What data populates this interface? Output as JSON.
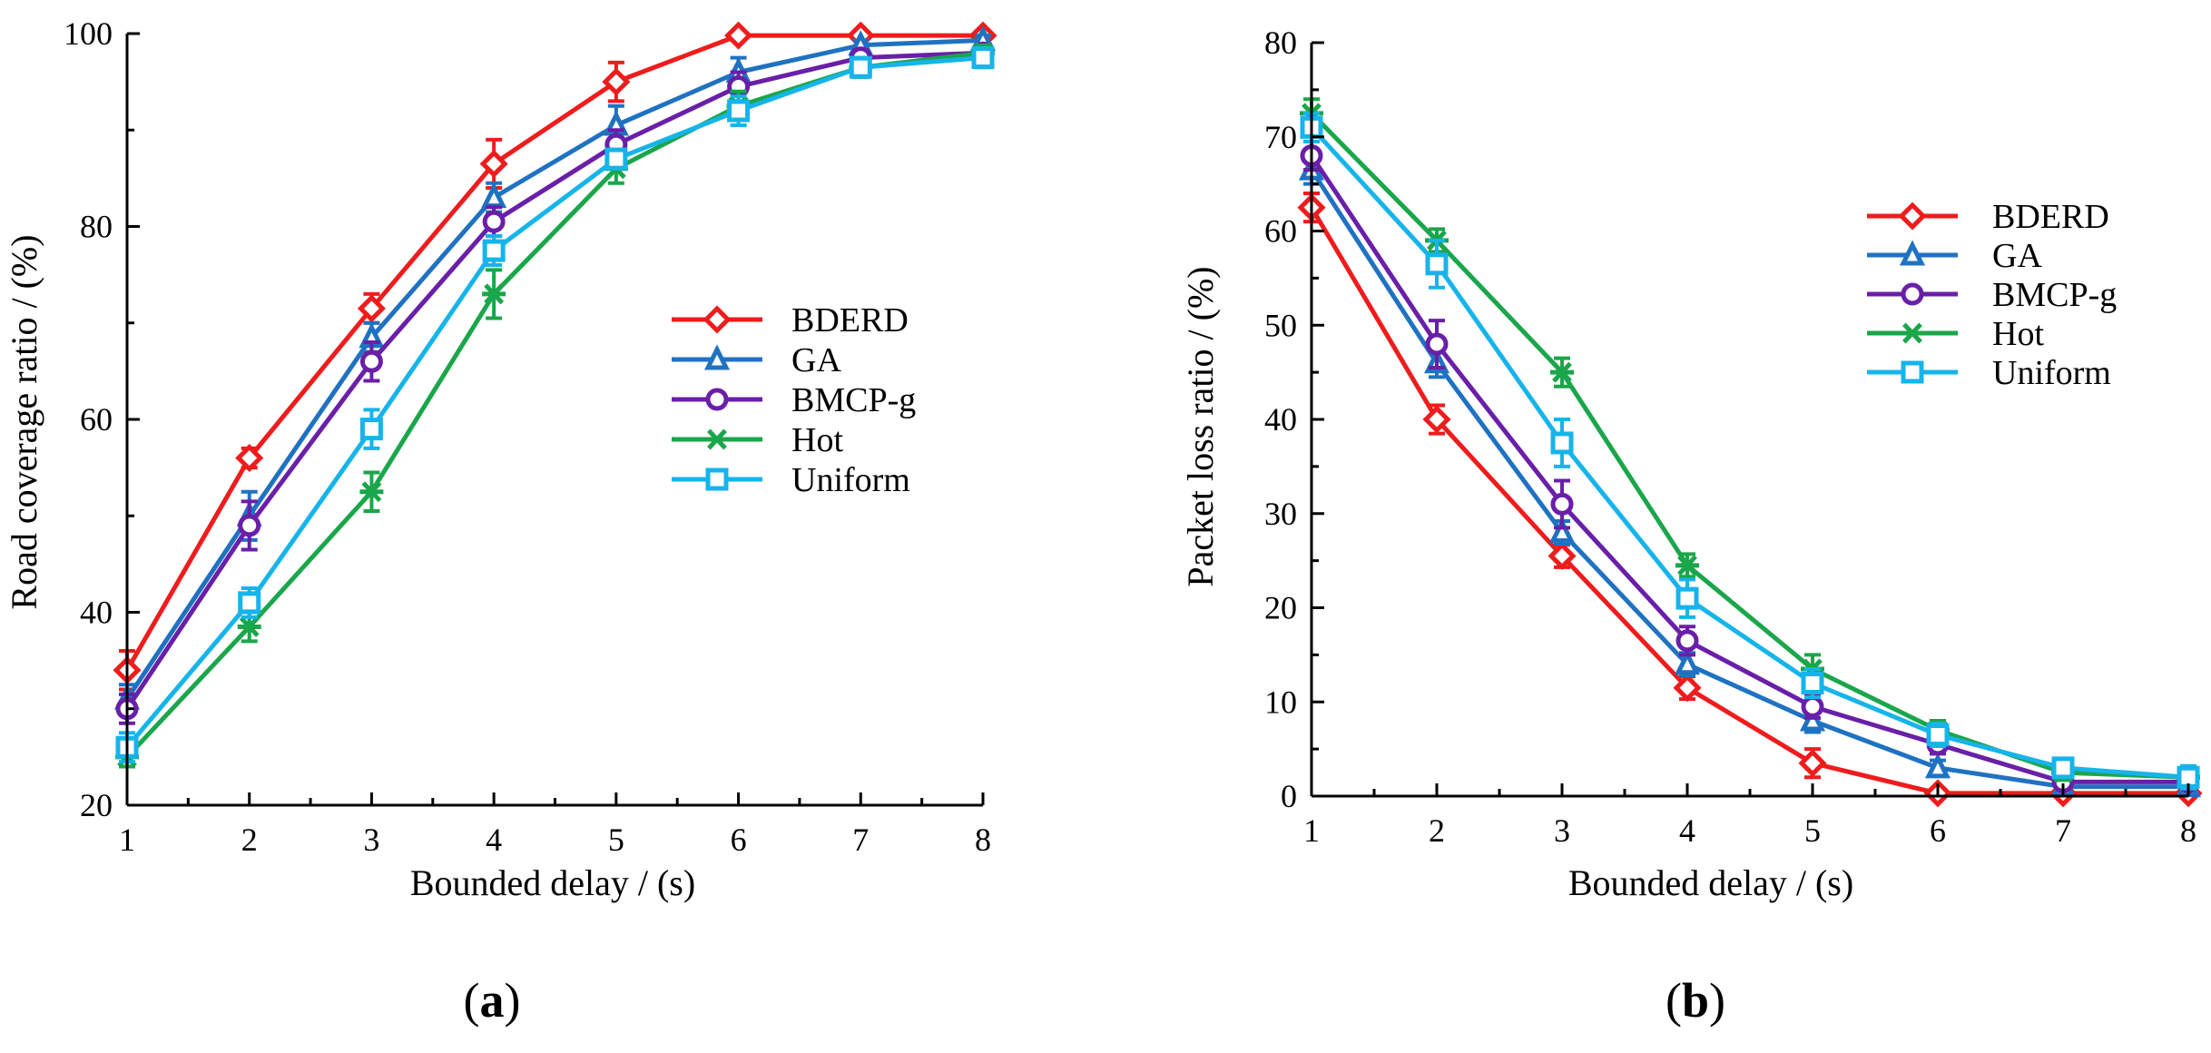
{
  "colors": {
    "BDERD": "#ee1c1c",
    "GA": "#1f72c2",
    "BMCP-g": "#6a1fa8",
    "Hot": "#1aa64a",
    "Uniform": "#16b4ea"
  },
  "chart_data": [
    {
      "type": "line",
      "panel_label": {
        "open": "(",
        "letter": "a",
        "close": ")"
      },
      "xlabel": "Bounded delay / (s)",
      "ylabel": "Road coverage ratio / (%)",
      "xlim": [
        1,
        8
      ],
      "ylim": [
        20,
        100
      ],
      "xticks": [
        1,
        2,
        3,
        4,
        5,
        6,
        7,
        8
      ],
      "yticks": [
        20,
        40,
        60,
        80,
        100
      ],
      "legend_position": "center-right",
      "series": [
        {
          "name": "BDERD",
          "marker": "diamond",
          "x": [
            1,
            2,
            3,
            4,
            5,
            6,
            7,
            8
          ],
          "values": [
            34,
            56,
            71.5,
            86.5,
            95,
            99.8,
            99.8,
            99.8
          ],
          "err": [
            2,
            1,
            1.5,
            2.5,
            2,
            0.3,
            0.3,
            0.3
          ]
        },
        {
          "name": "GA",
          "marker": "triangle",
          "x": [
            1,
            2,
            3,
            4,
            5,
            6,
            7,
            8
          ],
          "values": [
            31,
            50,
            68.5,
            83,
            90.5,
            96,
            98.8,
            99.3
          ],
          "err": [
            1.5,
            2.5,
            1.5,
            1.5,
            2,
            1.5,
            0.5,
            0.5
          ]
        },
        {
          "name": "BMCP-g",
          "marker": "circle",
          "x": [
            1,
            2,
            3,
            4,
            5,
            6,
            7,
            8
          ],
          "values": [
            30,
            49,
            66,
            80.5,
            88.5,
            94.5,
            97.5,
            98
          ],
          "err": [
            1.5,
            2.5,
            2,
            1.5,
            1.5,
            1.5,
            0.8,
            0.8
          ]
        },
        {
          "name": "Hot",
          "marker": "asterisk",
          "x": [
            1,
            2,
            3,
            4,
            5,
            6,
            7,
            8
          ],
          "values": [
            25,
            38.5,
            52.5,
            73,
            86,
            92.5,
            96.5,
            98
          ],
          "err": [
            1,
            1.5,
            2,
            2.5,
            1.5,
            1.5,
            1,
            0.8
          ]
        },
        {
          "name": "Uniform",
          "marker": "square",
          "x": [
            1,
            2,
            3,
            4,
            5,
            6,
            7,
            8
          ],
          "values": [
            26,
            41,
            59,
            77.5,
            87,
            92,
            96.5,
            97.5
          ],
          "err": [
            1.5,
            1.5,
            2,
            1.5,
            1,
            1.5,
            1,
            1
          ]
        }
      ]
    },
    {
      "type": "line",
      "panel_label": {
        "open": "(",
        "letter": "b",
        "close": ")"
      },
      "xlabel": "Bounded delay / (s)",
      "ylabel": "Packet loss ratio / (%)",
      "xlim": [
        1,
        8
      ],
      "ylim": [
        0,
        80
      ],
      "xticks": [
        1,
        2,
        3,
        4,
        5,
        6,
        7,
        8
      ],
      "yticks": [
        0,
        10,
        20,
        30,
        40,
        50,
        60,
        70,
        80
      ],
      "legend_position": "top-right",
      "series": [
        {
          "name": "BDERD",
          "marker": "diamond",
          "x": [
            1,
            2,
            3,
            4,
            5,
            6,
            7,
            8
          ],
          "values": [
            62.5,
            40,
            25.5,
            11.5,
            3.5,
            0.3,
            0.3,
            0.3
          ],
          "err": [
            1.5,
            1.5,
            1.2,
            1.2,
            1.5,
            0.3,
            0.3,
            0.3
          ]
        },
        {
          "name": "GA",
          "marker": "triangle",
          "x": [
            1,
            2,
            3,
            4,
            5,
            6,
            7,
            8
          ],
          "values": [
            66.5,
            46,
            28,
            14,
            8,
            3,
            1,
            1
          ],
          "err": [
            1.5,
            1.5,
            1.2,
            1.2,
            1.2,
            0.8,
            0.5,
            0.5
          ]
        },
        {
          "name": "BMCP-g",
          "marker": "circle",
          "x": [
            1,
            2,
            3,
            4,
            5,
            6,
            7,
            8
          ],
          "values": [
            68,
            48,
            31,
            16.5,
            9.5,
            5.5,
            1.5,
            1.5
          ],
          "err": [
            1.5,
            2.5,
            2.5,
            1.5,
            1.2,
            1,
            0.5,
            0.5
          ]
        },
        {
          "name": "Hot",
          "marker": "asterisk",
          "x": [
            1,
            2,
            3,
            4,
            5,
            6,
            7,
            8
          ],
          "values": [
            72.5,
            59,
            45,
            24.5,
            13.5,
            7,
            2.5,
            2
          ],
          "err": [
            1.5,
            1.2,
            1.5,
            1.2,
            1.5,
            1,
            0.8,
            0.8
          ]
        },
        {
          "name": "Uniform",
          "marker": "square",
          "x": [
            1,
            2,
            3,
            4,
            5,
            6,
            7,
            8
          ],
          "values": [
            71,
            56.5,
            37.5,
            21,
            12,
            6.5,
            3,
            2
          ],
          "err": [
            1.5,
            2.5,
            2.5,
            2,
            1.5,
            1.2,
            0.8,
            1.2
          ]
        }
      ]
    }
  ]
}
